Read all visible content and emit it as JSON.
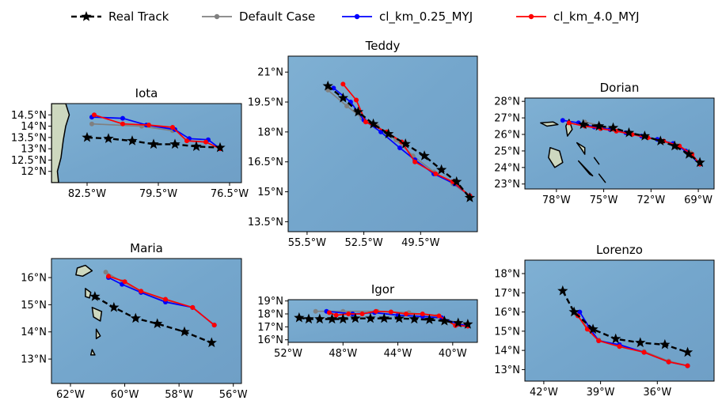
{
  "legend": [
    {
      "name": "Real Track",
      "color": "#000000",
      "marker": "star",
      "dash": true
    },
    {
      "name": "Default Case",
      "color": "#808080",
      "marker": "circle",
      "dash": false
    },
    {
      "name": "cl_km_0.25_MYJ",
      "color": "#0000ff",
      "marker": "circle",
      "dash": false
    },
    {
      "name": "cl_km_4.0_MYJ",
      "color": "#ff0000",
      "marker": "circle",
      "dash": false
    }
  ],
  "ocean_color": "#78a8cc",
  "land_color": "#cdd8bf",
  "chart_data": [
    {
      "type": "line",
      "title": "Iota",
      "xlim": [
        -84.0,
        -76.0
      ],
      "ylim": [
        11.5,
        15.0
      ],
      "xticks": [
        -82.5,
        -79.5,
        -76.5
      ],
      "xtick_labels": [
        "82.5°W",
        "79.5°W",
        "76.5°W"
      ],
      "yticks": [
        12.0,
        12.5,
        13.0,
        13.5,
        14.0,
        14.5
      ],
      "ytick_labels": [
        "12°N",
        "12.5°N",
        "13°N",
        "13.5°N",
        "14°N",
        "14.5°N"
      ],
      "series": [
        {
          "name": "Real Track",
          "x": [
            -82.5,
            -81.6,
            -80.6,
            -79.7,
            -78.8,
            -77.9,
            -76.9
          ],
          "y": [
            13.5,
            13.45,
            13.35,
            13.2,
            13.2,
            13.1,
            13.05
          ]
        },
        {
          "name": "Default Case",
          "x": [
            -82.3,
            -80.2,
            -78.9
          ],
          "y": [
            14.1,
            14.0,
            13.8
          ]
        },
        {
          "name": "cl_km_0.25_MYJ",
          "x": [
            -82.3,
            -81.0,
            -80.0,
            -78.8,
            -78.2,
            -77.4,
            -76.9
          ],
          "y": [
            14.4,
            14.35,
            14.05,
            13.85,
            13.45,
            13.4,
            13.0
          ]
        },
        {
          "name": "cl_km_4.0_MYJ",
          "x": [
            -82.2,
            -81.0,
            -79.9,
            -78.9,
            -78.3,
            -77.5,
            -76.9
          ],
          "y": [
            14.5,
            14.1,
            14.05,
            13.95,
            13.35,
            13.3,
            13.0
          ]
        }
      ],
      "land": [
        {
          "name": "central-america-coast",
          "coords": [
            [
              -84.0,
              15.0
            ],
            [
              -83.4,
              15.0
            ],
            [
              -83.25,
              14.5
            ],
            [
              -83.4,
              14.0
            ],
            [
              -83.5,
              13.4
            ],
            [
              -83.6,
              12.6
            ],
            [
              -83.75,
              12.0
            ],
            [
              -83.7,
              11.5
            ],
            [
              -84.0,
              11.5
            ]
          ]
        }
      ]
    },
    {
      "type": "line",
      "title": "Teddy",
      "xlim": [
        -56.5,
        -46.5
      ],
      "ylim": [
        13.0,
        21.8
      ],
      "xticks": [
        -55.5,
        -52.5,
        -49.5
      ],
      "xtick_labels": [
        "55.5°W",
        "52.5°W",
        "49.5°W"
      ],
      "yticks": [
        13.5,
        15.0,
        16.5,
        18.0,
        19.5,
        21.0
      ],
      "ytick_labels": [
        "13.5°N",
        "15°N",
        "16.5°N",
        "18°N",
        "19.5°N",
        "21°N"
      ],
      "series": [
        {
          "name": "Real Track",
          "x": [
            -54.4,
            -53.6,
            -52.8,
            -52.0,
            -51.2,
            -50.3,
            -49.3,
            -48.4,
            -47.6,
            -46.9
          ],
          "y": [
            20.3,
            19.7,
            19.0,
            18.4,
            17.9,
            17.4,
            16.8,
            16.1,
            15.5,
            14.7
          ]
        },
        {
          "name": "Default Case",
          "x": [
            -54.4,
            -53.4,
            -52.6,
            -51.8,
            -50.8,
            -49.9,
            -48.8,
            -47.8,
            -46.9
          ],
          "y": [
            20.1,
            19.3,
            18.7,
            18.3,
            17.6,
            16.8,
            16.0,
            15.4,
            14.8
          ]
        },
        {
          "name": "cl_km_0.25_MYJ",
          "x": [
            -54.1,
            -53.2,
            -52.5,
            -51.6,
            -50.6,
            -49.8,
            -48.8,
            -47.7,
            -46.9
          ],
          "y": [
            20.2,
            19.5,
            18.6,
            18.0,
            17.2,
            16.6,
            15.9,
            15.4,
            14.8
          ]
        },
        {
          "name": "cl_km_4.0_MYJ",
          "x": [
            -53.6,
            -52.9,
            -52.4,
            -51.3,
            -50.5,
            -49.8,
            -48.7,
            -47.8,
            -46.9
          ],
          "y": [
            20.4,
            19.6,
            18.5,
            18.0,
            17.5,
            16.5,
            15.9,
            15.5,
            14.8
          ]
        }
      ],
      "land": []
    },
    {
      "type": "line",
      "title": "Dorian",
      "xlim": [
        -80.0,
        -68.0
      ],
      "ylim": [
        22.7,
        28.2
      ],
      "xticks": [
        -78,
        -75,
        -72,
        -69
      ],
      "xtick_labels": [
        "78°W",
        "75°W",
        "72°W",
        "69°W"
      ],
      "yticks": [
        23,
        24,
        25,
        26,
        27,
        28
      ],
      "ytick_labels": [
        "23°N",
        "24°N",
        "25°N",
        "26°N",
        "27°N",
        "28°N"
      ],
      "series": [
        {
          "name": "Real Track",
          "x": [
            -76.3,
            -75.3,
            -74.4,
            -73.4,
            -72.4,
            -71.4,
            -70.5,
            -69.6,
            -68.9
          ],
          "y": [
            26.6,
            26.5,
            26.4,
            26.1,
            25.9,
            25.6,
            25.3,
            24.8,
            24.3
          ]
        },
        {
          "name": "Default Case",
          "x": [
            -76.2,
            -75.3,
            -74.4,
            -73.4,
            -72.4,
            -71.4,
            -70.4,
            -69.5,
            -68.9
          ],
          "y": [
            26.75,
            26.55,
            26.3,
            26.1,
            25.85,
            25.6,
            25.35,
            24.9,
            24.2
          ]
        },
        {
          "name": "cl_km_0.25_MYJ",
          "x": [
            -77.6,
            -76.6,
            -75.6,
            -74.6,
            -73.6,
            -72.6,
            -71.6,
            -70.6,
            -69.8,
            -68.9
          ],
          "y": [
            26.85,
            26.7,
            26.45,
            26.3,
            26.1,
            25.9,
            25.7,
            25.45,
            25.0,
            24.2
          ]
        },
        {
          "name": "cl_km_4.0_MYJ",
          "x": [
            -77.2,
            -76.2,
            -75.2,
            -74.2,
            -73.2,
            -72.2,
            -71.2,
            -70.2,
            -69.4,
            -68.9
          ],
          "y": [
            26.7,
            26.5,
            26.35,
            26.2,
            26.0,
            25.8,
            25.6,
            25.3,
            24.8,
            24.2
          ]
        }
      ],
      "land": [
        {
          "name": "grand-bahama",
          "coords": [
            [
              -79.0,
              26.7
            ],
            [
              -78.2,
              26.75
            ],
            [
              -77.9,
              26.6
            ],
            [
              -78.6,
              26.5
            ]
          ]
        },
        {
          "name": "abaco",
          "coords": [
            [
              -77.2,
              26.9
            ],
            [
              -77.0,
              26.3
            ],
            [
              -77.3,
              25.9
            ],
            [
              -77.4,
              26.5
            ]
          ]
        },
        {
          "name": "andros",
          "coords": [
            [
              -78.4,
              25.2
            ],
            [
              -77.8,
              25.0
            ],
            [
              -77.6,
              24.3
            ],
            [
              -78.1,
              24.0
            ],
            [
              -78.5,
              24.6
            ]
          ]
        },
        {
          "name": "eleuthera",
          "coords": [
            [
              -76.7,
              25.5
            ],
            [
              -76.2,
              25.2
            ],
            [
              -76.2,
              24.8
            ],
            [
              -76.4,
              25.1
            ]
          ]
        },
        {
          "name": "exuma",
          "coords": [
            [
              -76.6,
              24.4
            ],
            [
              -75.9,
              23.6
            ],
            [
              -75.7,
              23.5
            ]
          ]
        },
        {
          "name": "cat-island",
          "coords": [
            [
              -75.6,
              24.6
            ],
            [
              -75.3,
              24.2
            ]
          ]
        },
        {
          "name": "long-island",
          "coords": [
            [
              -75.3,
              23.6
            ],
            [
              -74.9,
              23.1
            ]
          ]
        }
      ]
    },
    {
      "type": "line",
      "title": "Maria",
      "xlim": [
        -62.7,
        -55.7
      ],
      "ylim": [
        12.1,
        16.7
      ],
      "xticks": [
        -62,
        -60,
        -58,
        -56
      ],
      "xtick_labels": [
        "62°W",
        "60°W",
        "58°W",
        "56°W"
      ],
      "yticks": [
        13,
        14,
        15,
        16
      ],
      "ytick_labels": [
        "13°N",
        "14°N",
        "15°N",
        "16°N"
      ],
      "series": [
        {
          "name": "Real Track",
          "x": [
            -61.1,
            -60.4,
            -59.6,
            -58.8,
            -57.8,
            -56.8
          ],
          "y": [
            15.3,
            14.9,
            14.5,
            14.3,
            14.0,
            13.6
          ]
        },
        {
          "name": "Default Case",
          "x": [
            -60.7,
            -60.1,
            -59.4,
            -58.5,
            -57.5,
            -56.7
          ],
          "y": [
            16.2,
            15.85,
            15.45,
            15.15,
            14.9,
            14.25
          ]
        },
        {
          "name": "cl_km_0.25_MYJ",
          "x": [
            -60.6,
            -60.1,
            -59.4,
            -58.5,
            -57.5,
            -56.7
          ],
          "y": [
            16.0,
            15.75,
            15.45,
            15.1,
            14.9,
            14.25
          ]
        },
        {
          "name": "cl_km_4.0_MYJ",
          "x": [
            -60.6,
            -60.0,
            -59.4,
            -58.5,
            -57.5,
            -56.7
          ],
          "y": [
            16.05,
            15.85,
            15.5,
            15.2,
            14.9,
            14.25
          ]
        }
      ],
      "land": [
        {
          "name": "guadeloupe",
          "coords": [
            [
              -61.75,
              16.35
            ],
            [
              -61.45,
              16.45
            ],
            [
              -61.2,
              16.25
            ],
            [
              -61.55,
              16.05
            ],
            [
              -61.8,
              16.1
            ]
          ]
        },
        {
          "name": "dominica",
          "coords": [
            [
              -61.45,
              15.6
            ],
            [
              -61.25,
              15.45
            ],
            [
              -61.3,
              15.25
            ],
            [
              -61.45,
              15.3
            ]
          ]
        },
        {
          "name": "martinique",
          "coords": [
            [
              -61.2,
              14.9
            ],
            [
              -60.85,
              14.75
            ],
            [
              -60.9,
              14.4
            ],
            [
              -61.15,
              14.55
            ]
          ]
        },
        {
          "name": "st-lucia",
          "coords": [
            [
              -61.05,
              14.1
            ],
            [
              -60.9,
              13.85
            ],
            [
              -61.05,
              13.75
            ]
          ]
        },
        {
          "name": "st-vincent",
          "coords": [
            [
              -61.2,
              13.35
            ],
            [
              -61.1,
              13.15
            ],
            [
              -61.25,
              13.15
            ]
          ]
        }
      ]
    },
    {
      "type": "line",
      "title": "Igor",
      "xlim": [
        -52.0,
        -38.2
      ],
      "ylim": [
        15.8,
        19.1
      ],
      "xticks": [
        -52,
        -48,
        -44,
        -40
      ],
      "xtick_labels": [
        "52°W",
        "48°W",
        "44°W",
        "40°W"
      ],
      "yticks": [
        16,
        17,
        18,
        19
      ],
      "ytick_labels": [
        "16°N",
        "17°N",
        "18°N",
        "19°N"
      ],
      "series": [
        {
          "name": "Real Track",
          "x": [
            -51.2,
            -50.5,
            -49.7,
            -48.8,
            -48.0,
            -47.1,
            -46.0,
            -45.0,
            -43.9,
            -42.8,
            -41.7,
            -40.6,
            -39.6,
            -38.9
          ],
          "y": [
            17.7,
            17.6,
            17.6,
            17.6,
            17.6,
            17.65,
            17.65,
            17.65,
            17.65,
            17.6,
            17.55,
            17.45,
            17.3,
            17.2
          ]
        },
        {
          "name": "Default Case",
          "x": [
            -50.0,
            -48.0,
            -45.5,
            -43.2,
            -41.2,
            -39.6,
            -38.9
          ],
          "y": [
            18.2,
            18.2,
            18.2,
            18.1,
            17.8,
            17.3,
            17.1
          ]
        },
        {
          "name": "cl_km_0.25_MYJ",
          "x": [
            -49.2,
            -47.3,
            -45.7,
            -44.0,
            -42.2,
            -40.8,
            -39.6,
            -38.9
          ],
          "y": [
            18.2,
            18.0,
            18.1,
            17.9,
            17.8,
            17.7,
            17.2,
            17.1
          ]
        },
        {
          "name": "cl_km_4.0_MYJ",
          "x": [
            -49.0,
            -48.5,
            -47.6,
            -46.6,
            -45.6,
            -44.5,
            -43.4,
            -42.2,
            -41.0,
            -39.8,
            -38.9
          ],
          "y": [
            18.1,
            17.9,
            18.0,
            18.0,
            18.2,
            18.15,
            18.0,
            18.0,
            17.85,
            17.1,
            17.05
          ]
        }
      ],
      "land": []
    },
    {
      "type": "line",
      "title": "Lorenzo",
      "xlim": [
        -43.0,
        -33.0
      ],
      "ylim": [
        12.4,
        18.7
      ],
      "xticks": [
        -42,
        -39,
        -36
      ],
      "xtick_labels": [
        "42°W",
        "39°W",
        "36°W"
      ],
      "yticks": [
        13,
        14,
        15,
        16,
        17,
        18
      ],
      "ytick_labels": [
        "13°N",
        "14°N",
        "15°N",
        "16°N",
        "17°N",
        "18°N"
      ],
      "series": [
        {
          "name": "Real Track",
          "x": [
            -41.0,
            -40.4,
            -39.4,
            -38.2,
            -36.9,
            -35.6,
            -34.4
          ],
          "y": [
            17.1,
            16.0,
            15.1,
            14.6,
            14.4,
            14.3,
            13.9
          ]
        },
        {
          "name": "Default Case",
          "x": [
            -40.3,
            -39.7,
            -39.1,
            -38.0,
            -36.7,
            -35.4,
            -34.4
          ],
          "y": [
            15.9,
            15.2,
            14.55,
            14.2,
            13.95,
            13.45,
            13.2
          ]
        },
        {
          "name": "cl_km_0.25_MYJ",
          "x": [
            -40.1,
            -39.6,
            -39.1,
            -38.0,
            -36.7,
            -35.4,
            -34.4
          ],
          "y": [
            16.0,
            15.2,
            14.5,
            14.3,
            13.9,
            13.4,
            13.2
          ]
        },
        {
          "name": "cl_km_4.0_MYJ",
          "x": [
            -40.2,
            -39.7,
            -39.1,
            -38.0,
            -36.7,
            -35.4,
            -34.4
          ],
          "y": [
            15.8,
            15.1,
            14.5,
            14.2,
            13.9,
            13.4,
            13.2
          ]
        }
      ],
      "land": []
    }
  ]
}
